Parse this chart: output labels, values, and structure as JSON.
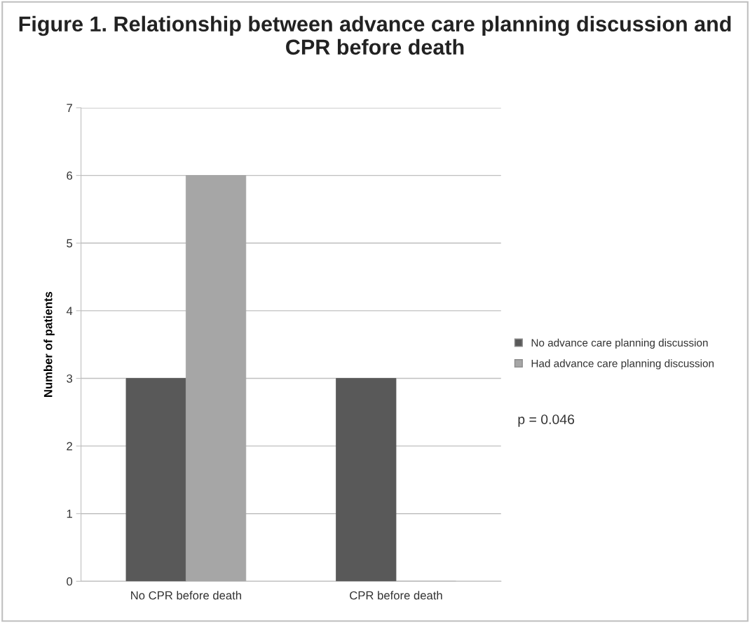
{
  "chart_data": {
    "type": "bar",
    "title": "Figure 1. Relationship between advance care planning discussion and CPR before death",
    "ylabel": "Number of patients",
    "categories": [
      "No CPR before death",
      "CPR before death"
    ],
    "series": [
      {
        "name": "No advance care planning discussion",
        "color": "#595959",
        "values": [
          3,
          3
        ]
      },
      {
        "name": "Had advance care planning discussion",
        "color": "#a6a6a6",
        "values": [
          6,
          0
        ]
      }
    ],
    "ylim": [
      0,
      7
    ],
    "yticks": [
      0,
      1,
      2,
      3,
      4,
      5,
      6,
      7
    ],
    "grid": "y",
    "legend": "right",
    "annotations": [
      "p = 0.046"
    ]
  }
}
